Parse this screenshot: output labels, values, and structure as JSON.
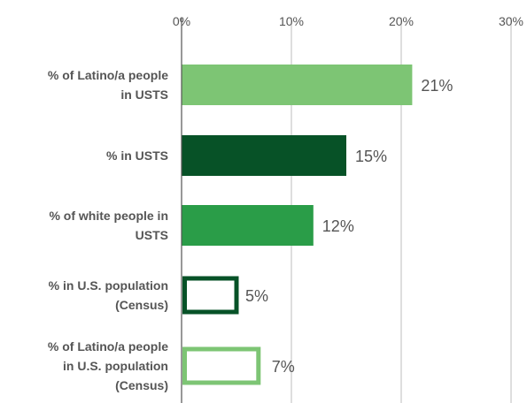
{
  "chart_data": {
    "type": "bar",
    "orientation": "horizontal",
    "xlim": [
      0,
      30
    ],
    "x_ticks": [
      "0%",
      "10%",
      "20%",
      "30%"
    ],
    "x_tick_values": [
      0,
      10,
      20,
      30
    ],
    "grid": true,
    "legend": "none",
    "categories": [
      [
        "% of Latino/a people",
        "in USTS"
      ],
      [
        "% in USTS"
      ],
      [
        "% of white people in",
        "USTS"
      ],
      [
        "% in U.S. population",
        "(Census)"
      ],
      [
        "% of Latino/a people",
        "in U.S. population",
        "(Census)"
      ]
    ],
    "values": [
      21,
      15,
      12,
      5,
      7
    ],
    "value_labels": [
      "21%",
      "15%",
      "12%",
      "5%",
      "7%"
    ],
    "bar_styles": [
      {
        "fill": "#7dc574",
        "stroke": "none"
      },
      {
        "fill": "#075227",
        "stroke": "none"
      },
      {
        "fill": "#2a9d48",
        "stroke": "none"
      },
      {
        "fill": "#ffffff",
        "stroke": "#075227"
      },
      {
        "fill": "#ffffff",
        "stroke": "#7dc574"
      }
    ]
  }
}
